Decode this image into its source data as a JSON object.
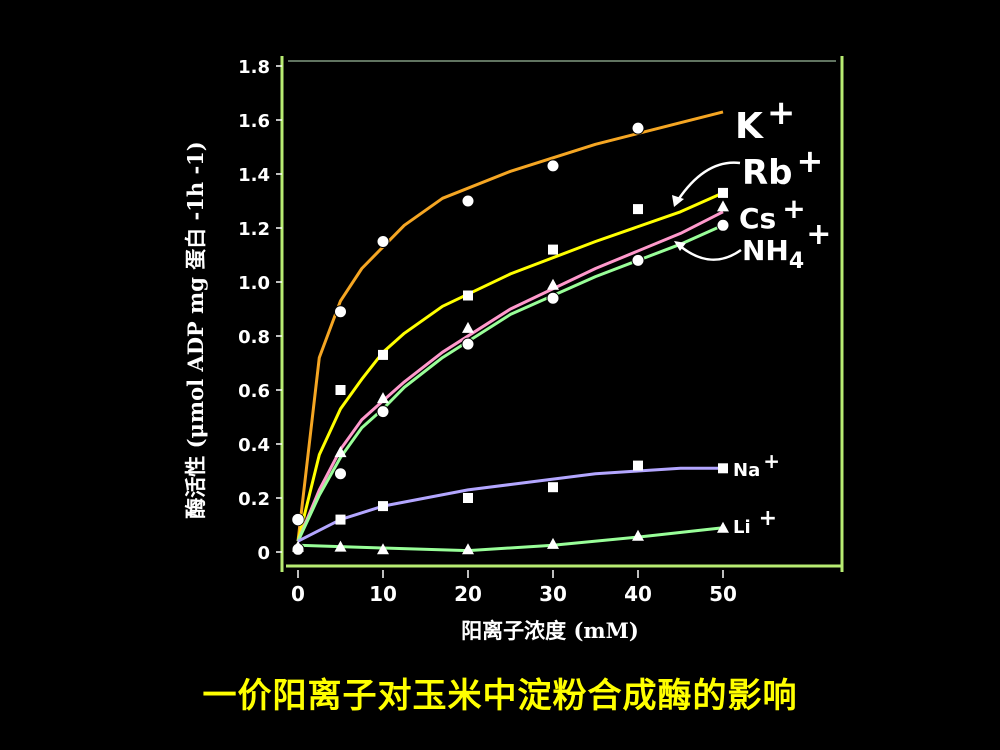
{
  "caption": "一价阳离子对玉米中淀粉合成酶的影响",
  "chart_data": {
    "type": "line",
    "xlabel": "阳离子浓度  (mM)",
    "ylabel": "酶活性 (μmol ADP mg  蛋白 -1h -1)",
    "xlim": [
      0,
      50
    ],
    "ylim": [
      0,
      1.8
    ],
    "x_ticks": [
      "0",
      "10",
      "20",
      "30",
      "40",
      "50"
    ],
    "y_ticks": [
      "0",
      "0.2",
      "0.4",
      "0.6",
      "0.8",
      "1.0",
      "1.2",
      "1.4",
      "1.6",
      "1.8"
    ],
    "series": [
      {
        "name": "K+",
        "ion": "K",
        "charge": "+",
        "color": "#f5a623",
        "marker": "circle",
        "points": [
          [
            0,
            0.12
          ],
          [
            5,
            0.89
          ],
          [
            10,
            1.15
          ],
          [
            20,
            1.3
          ],
          [
            30,
            1.43
          ],
          [
            40,
            1.57
          ]
        ],
        "curve": [
          [
            0,
            0.04
          ],
          [
            2.5,
            0.72
          ],
          [
            5,
            0.93
          ],
          [
            7.5,
            1.05
          ],
          [
            10,
            1.13
          ],
          [
            12.5,
            1.21
          ],
          [
            17,
            1.31
          ],
          [
            25,
            1.41
          ],
          [
            35,
            1.51
          ],
          [
            45,
            1.59
          ],
          [
            50,
            1.63
          ]
        ]
      },
      {
        "name": "Rb+",
        "ion": "Rb",
        "charge": "+",
        "color": "#ffff00",
        "marker": "square",
        "points": [
          [
            5,
            0.6
          ],
          [
            10,
            0.73
          ],
          [
            20,
            0.95
          ],
          [
            30,
            1.12
          ],
          [
            40,
            1.27
          ],
          [
            50,
            1.33
          ]
        ],
        "curve": [
          [
            0,
            0.04
          ],
          [
            2.5,
            0.36
          ],
          [
            5,
            0.53
          ],
          [
            7.5,
            0.64
          ],
          [
            10,
            0.74
          ],
          [
            12.5,
            0.81
          ],
          [
            17,
            0.91
          ],
          [
            25,
            1.03
          ],
          [
            35,
            1.15
          ],
          [
            45,
            1.26
          ],
          [
            50,
            1.33
          ]
        ]
      },
      {
        "name": "Cs+",
        "ion": "Cs",
        "charge": "+",
        "color": "#ff99cc",
        "marker": "triangle",
        "points": [
          [
            5,
            0.37
          ],
          [
            10,
            0.57
          ],
          [
            20,
            0.83
          ],
          [
            30,
            0.99
          ],
          [
            50,
            1.28
          ]
        ],
        "curve": [
          [
            0,
            0.04
          ],
          [
            2.5,
            0.23
          ],
          [
            5,
            0.38
          ],
          [
            7.5,
            0.49
          ],
          [
            10,
            0.56
          ],
          [
            12.5,
            0.63
          ],
          [
            17,
            0.74
          ],
          [
            25,
            0.9
          ],
          [
            35,
            1.05
          ],
          [
            45,
            1.18
          ],
          [
            50,
            1.26
          ]
        ]
      },
      {
        "name": "NH4+",
        "ion": "NH",
        "sub": "4",
        "charge": "+",
        "color": "#99ff99",
        "marker": "circle",
        "points": [
          [
            0,
            0.01
          ],
          [
            5,
            0.29
          ],
          [
            10,
            0.52
          ],
          [
            20,
            0.77
          ],
          [
            30,
            0.94
          ],
          [
            40,
            1.08
          ],
          [
            50,
            1.21
          ]
        ],
        "curve": [
          [
            0,
            0.04
          ],
          [
            2.5,
            0.21
          ],
          [
            5,
            0.35
          ],
          [
            7.5,
            0.46
          ],
          [
            10,
            0.53
          ],
          [
            12.5,
            0.61
          ],
          [
            17,
            0.72
          ],
          [
            25,
            0.88
          ],
          [
            35,
            1.02
          ],
          [
            45,
            1.14
          ],
          [
            50,
            1.21
          ]
        ]
      },
      {
        "name": "Na+",
        "ion": "Na",
        "charge": "+",
        "color": "#b3a6ff",
        "marker": "square",
        "points": [
          [
            5,
            0.12
          ],
          [
            10,
            0.17
          ],
          [
            20,
            0.2
          ],
          [
            30,
            0.24
          ],
          [
            40,
            0.32
          ],
          [
            50,
            0.31
          ]
        ],
        "curve": [
          [
            0,
            0.04
          ],
          [
            5,
            0.12
          ],
          [
            10,
            0.17
          ],
          [
            15,
            0.2
          ],
          [
            20,
            0.23
          ],
          [
            25,
            0.25
          ],
          [
            30,
            0.27
          ],
          [
            35,
            0.29
          ],
          [
            40,
            0.3
          ],
          [
            45,
            0.31
          ],
          [
            50,
            0.31
          ]
        ]
      },
      {
        "name": "Li+",
        "ion": "Li",
        "charge": "+",
        "color": "#99ff99",
        "marker": "triangle",
        "points": [
          [
            0,
            0.02
          ],
          [
            5,
            0.02
          ],
          [
            10,
            0.01
          ],
          [
            20,
            0.01
          ],
          [
            30,
            0.03
          ],
          [
            40,
            0.06
          ],
          [
            50,
            0.09
          ]
        ],
        "curve": [
          [
            0,
            0.025
          ],
          [
            10,
            0.015
          ],
          [
            20,
            0.005
          ],
          [
            30,
            0.025
          ],
          [
            40,
            0.055
          ],
          [
            50,
            0.09
          ]
        ]
      }
    ]
  }
}
